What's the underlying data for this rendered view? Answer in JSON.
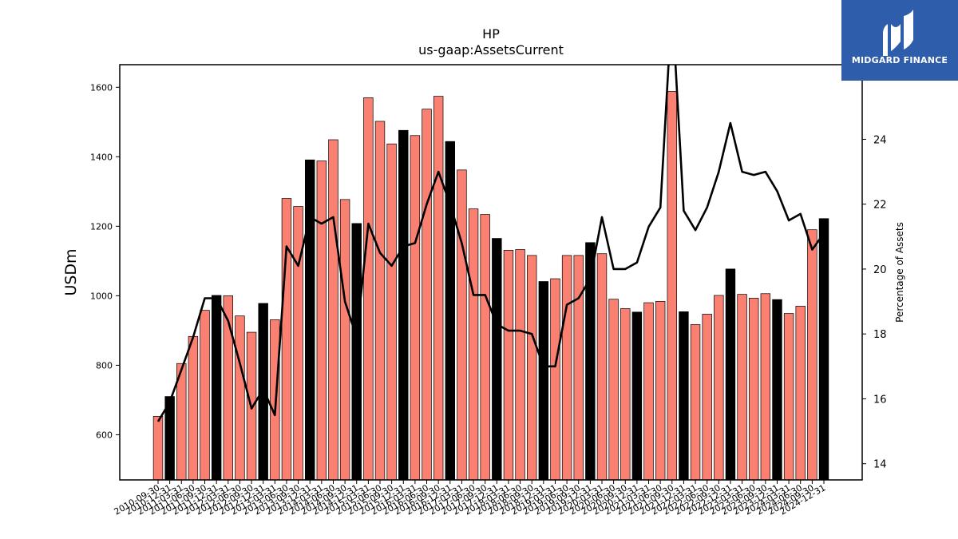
{
  "chart_data": {
    "type": "bar",
    "title": "HP",
    "subtitle": "us-gaap:AssetsCurrent",
    "ylabel": "USDm",
    "y2label": "Percentage of Assets",
    "ylim": [
      470,
      1665
    ],
    "y2lim": [
      13.5,
      26.3
    ],
    "yticks": [
      600,
      800,
      1000,
      1200,
      1400,
      1600
    ],
    "y2ticks": [
      14,
      16,
      18,
      20,
      22,
      24
    ],
    "grid": false,
    "colors": {
      "bar": "#fa8072",
      "bar_highlight": "#000000",
      "line": "#000000",
      "edge": "#000000"
    },
    "categories": [
      "2010-09-30",
      "2010-12-31",
      "2011-03-31",
      "2011-06-30",
      "2011-09-30",
      "2011-12-31",
      "2012-03-31",
      "2012-06-30",
      "2012-09-30",
      "2012-12-31",
      "2013-03-31",
      "2013-06-30",
      "2013-09-30",
      "2013-12-31",
      "2014-03-31",
      "2014-06-30",
      "2014-09-30",
      "2014-12-31",
      "2015-03-31",
      "2015-06-30",
      "2015-09-30",
      "2015-12-31",
      "2016-03-31",
      "2016-06-30",
      "2016-09-30",
      "2016-12-31",
      "2017-03-31",
      "2017-06-30",
      "2017-09-30",
      "2017-12-31",
      "2018-03-31",
      "2018-06-30",
      "2018-09-30",
      "2018-12-31",
      "2019-03-31",
      "2019-06-30",
      "2019-09-30",
      "2019-12-31",
      "2020-03-31",
      "2020-06-30",
      "2020-09-30",
      "2020-12-31",
      "2021-03-31",
      "2021-06-30",
      "2021-09-30",
      "2021-12-31",
      "2022-03-31",
      "2022-06-30",
      "2022-09-30",
      "2022-12-31",
      "2023-03-31",
      "2023-06-30",
      "2023-09-30",
      "2023-12-31",
      "2024-03-31",
      "2024-06-30",
      "2024-09-30",
      "2024-12-31"
    ],
    "tick_labels": [
      "2010-09-30",
      "2010-12-31",
      "2011-03-31",
      "2011-06-30",
      "2011-09-30",
      "2011-12-31",
      "2012-03-31",
      "2012-06-30",
      "2012-09-30",
      "2012-12-31",
      "2013-03-31",
      "2013-06-30",
      "2013-09-30",
      "2013-12-31",
      "2014-03-31",
      "2014-06-30",
      "2014-09-30",
      "2014-12-31",
      "2015-03-31",
      "2015-06-30",
      "2015-09-30",
      "2015-12-31",
      "2016-03-31",
      "2016-06-30",
      "2016-09-30",
      "2016-12-31",
      "2017-03-31",
      "2017-06-30",
      "2017-09-30",
      "2017-12-31",
      "2018-03-31",
      "2018-06-30",
      "2018-09-30",
      "2018-12-31",
      "2019-03-31",
      "2019-06-30",
      "2019-09-30",
      "2019-12-31",
      "2020-03-31",
      "2020-06-30",
      "2020-09-30",
      "2020-12-31",
      "2021-03-31",
      "2021-06-30",
      "2021-09-30",
      "2021-12-31",
      "2022-03-31",
      "2022-06-30",
      "2022-09-30",
      "2022-12-31",
      "2023-03-31",
      "2023-06-30",
      "2023-09-30",
      "2023-12-31",
      "2024-03-31",
      "2024-06-30",
      "2024-09-30",
      "2024-12-31"
    ],
    "series": [
      {
        "type": "bar",
        "values": [
          653,
          710,
          805,
          883,
          958,
          1001,
          1000,
          942,
          895,
          978,
          931,
          1280,
          1257,
          1391,
          1388,
          1449,
          1277,
          1208,
          1570,
          1502,
          1437,
          1476,
          1461,
          1537,
          1574,
          1444,
          1362,
          1250,
          1234,
          1165,
          1131,
          1133,
          1116,
          1041,
          1049,
          1116,
          1116,
          1153,
          1121,
          990,
          963,
          953,
          980,
          984,
          1588,
          954,
          917,
          947,
          1001,
          1077,
          1004,
          993,
          1006,
          989,
          949,
          970,
          1190,
          1222
        ],
        "highlight": [
          false,
          true,
          false,
          false,
          false,
          true,
          false,
          false,
          false,
          true,
          false,
          false,
          false,
          true,
          false,
          false,
          false,
          true,
          false,
          false,
          false,
          true,
          false,
          false,
          false,
          true,
          false,
          false,
          false,
          true,
          false,
          false,
          false,
          true,
          false,
          false,
          false,
          true,
          false,
          false,
          false,
          true,
          false,
          false,
          false,
          true,
          false,
          false,
          false,
          true,
          false,
          false,
          false,
          true,
          false,
          false,
          false,
          true
        ]
      },
      {
        "type": "line",
        "axis": "right",
        "values": [
          15.3,
          15.9,
          16.9,
          17.9,
          19.1,
          19.1,
          18.4,
          17.1,
          15.7,
          16.3,
          15.5,
          20.7,
          20.1,
          21.6,
          21.4,
          21.6,
          19.0,
          17.9,
          21.4,
          20.5,
          20.1,
          20.7,
          20.8,
          22.0,
          23.0,
          22.0,
          20.8,
          19.2,
          19.2,
          18.3,
          18.1,
          18.1,
          18.0,
          17.0,
          17.0,
          18.9,
          19.1,
          19.7,
          21.6,
          20.0,
          20.0,
          20.2,
          21.3,
          21.9,
          28.2,
          21.8,
          21.2,
          21.9,
          23.0,
          24.5,
          23.0,
          22.9,
          23.0,
          22.4,
          21.5,
          21.7,
          20.6,
          21.1
        ]
      }
    ]
  },
  "logo": {
    "text": "MIDGARD FINANCE",
    "colors": {
      "background": "#2d5dab",
      "foreground": "#ffffff"
    }
  }
}
